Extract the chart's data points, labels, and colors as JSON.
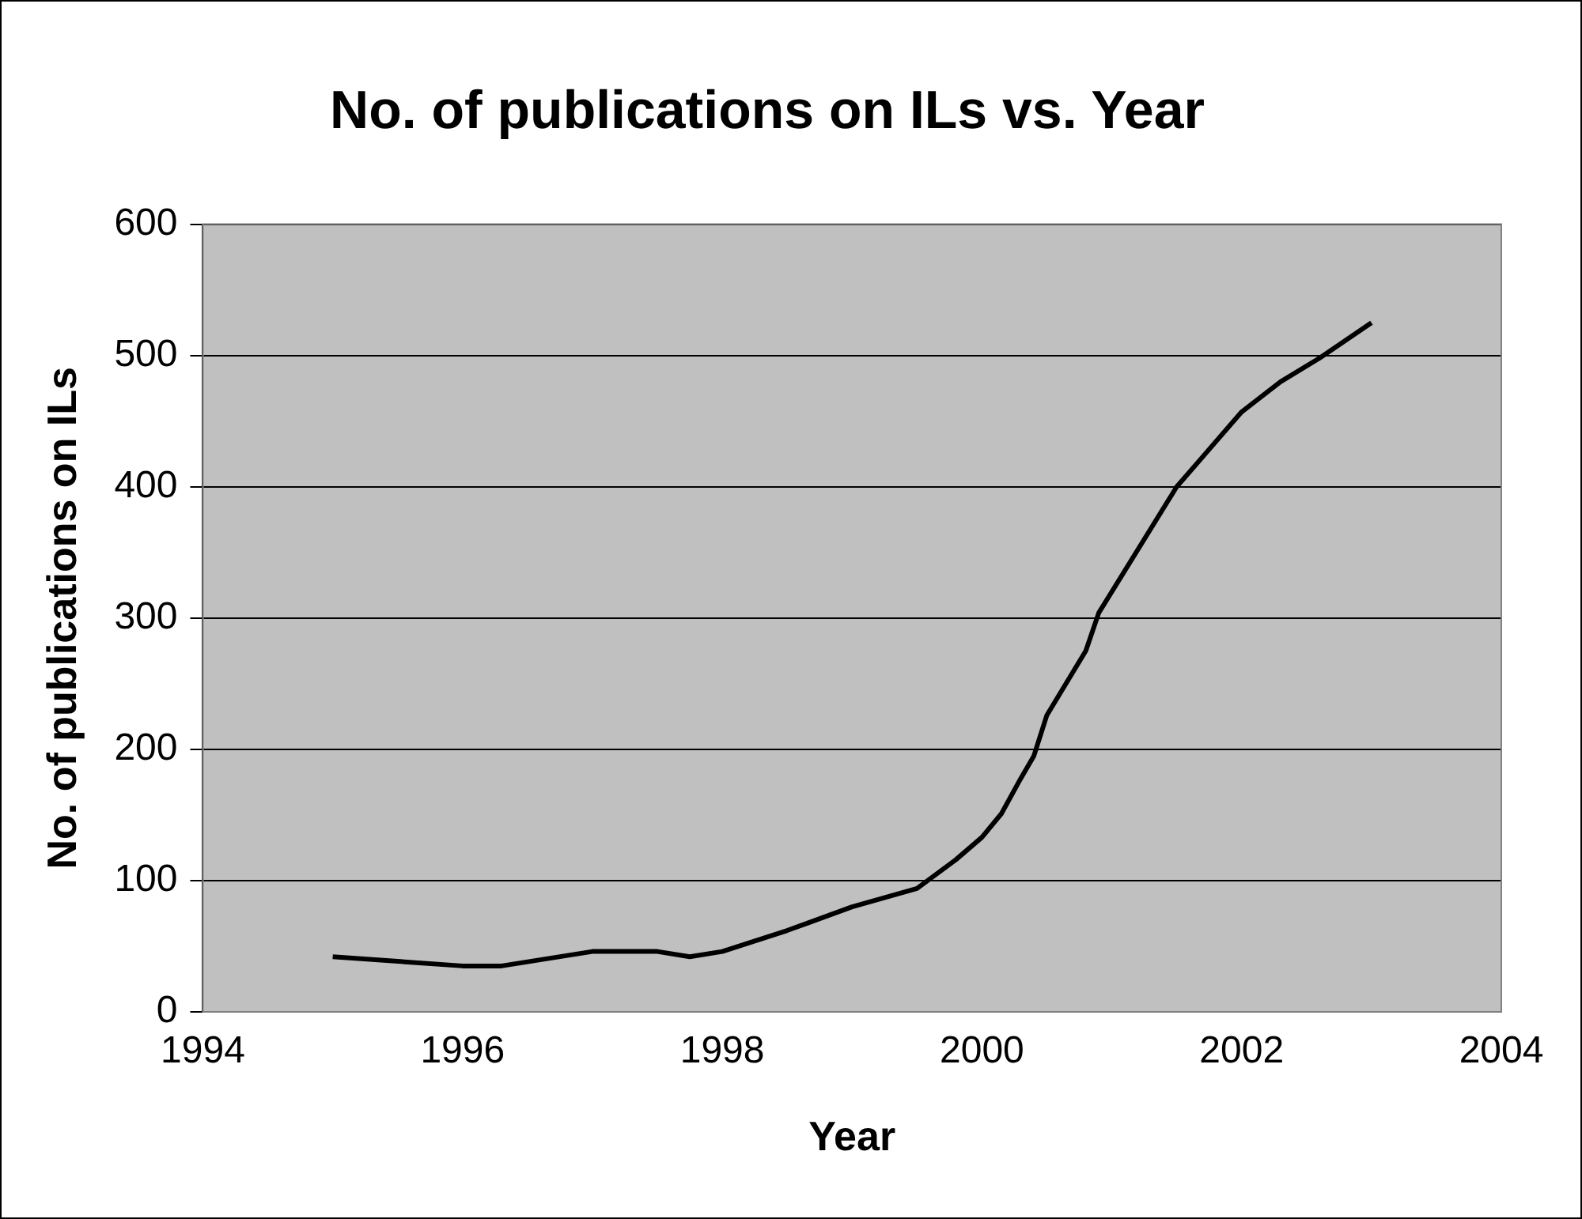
{
  "chart_data": {
    "type": "line",
    "title": "No. of publications on ILs vs. Year",
    "xlabel": "Year",
    "ylabel": "No. of publications on ILs",
    "x": [
      1995,
      1996,
      1996.3,
      1997,
      1997.5,
      1997.75,
      1998,
      1998.5,
      1999,
      1999.5,
      1999.8,
      2000,
      2000.15,
      2000.3,
      2000.4,
      2000.5,
      2000.8,
      2000.9,
      2001.5,
      2002,
      2002.3,
      2002.6,
      2003
    ],
    "series": [
      {
        "color": "#000000",
        "values": [
          42,
          35,
          35,
          46,
          46,
          42,
          46,
          62,
          80,
          94,
          116,
          133,
          151,
          178,
          195,
          226,
          275,
          304,
          400,
          457,
          480,
          498,
          525
        ]
      }
    ],
    "xlim": [
      1994,
      2004
    ],
    "xticks": [
      1994,
      1996,
      1998,
      2000,
      2002,
      2004
    ],
    "ylim": [
      0,
      600
    ],
    "yticks": [
      0,
      100,
      200,
      300,
      400,
      500,
      600
    ],
    "grid": "y",
    "legend": false,
    "marker": "none",
    "line_style": "solid"
  }
}
